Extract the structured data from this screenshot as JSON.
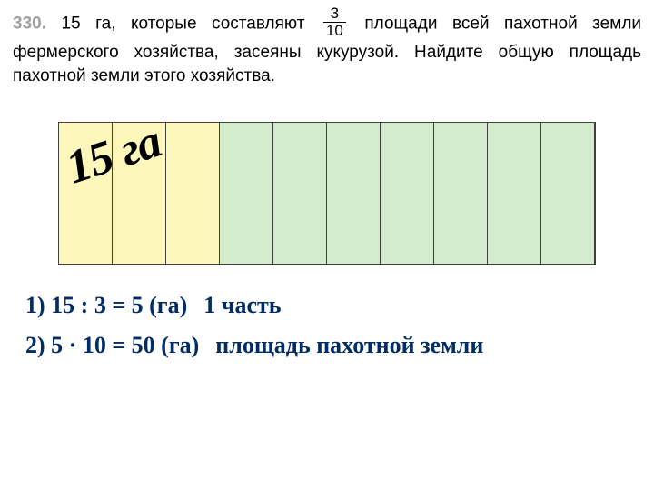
{
  "problem": {
    "number": "330.",
    "text_before": "15 га, которые составляют",
    "fraction_num": "3",
    "fraction_den": "10",
    "text_after": "площади всей пахотной земли фермерского хозяйства, засеяны кукурузой. Найдите общую площадь пахотной земли этого хозяйства."
  },
  "diagram": {
    "total_cells": 10,
    "yellow_cells": 3,
    "colors": {
      "yellow": "#fdf7bc",
      "green": "#d3edcc",
      "border": "#404040"
    },
    "overlay_text": "15 га",
    "overlay_fontsize": 52,
    "overlay_rotate_deg": -18
  },
  "solution": {
    "color": "#002d64",
    "fontsize": 26,
    "lines": [
      {
        "n": "1)",
        "expr": "15 : 3 = 5 (га)",
        "desc": "1 часть"
      },
      {
        "n": "2)",
        "expr": "5 · 10 = 50 (га)",
        "desc": "площадь пахотной земли"
      }
    ]
  }
}
